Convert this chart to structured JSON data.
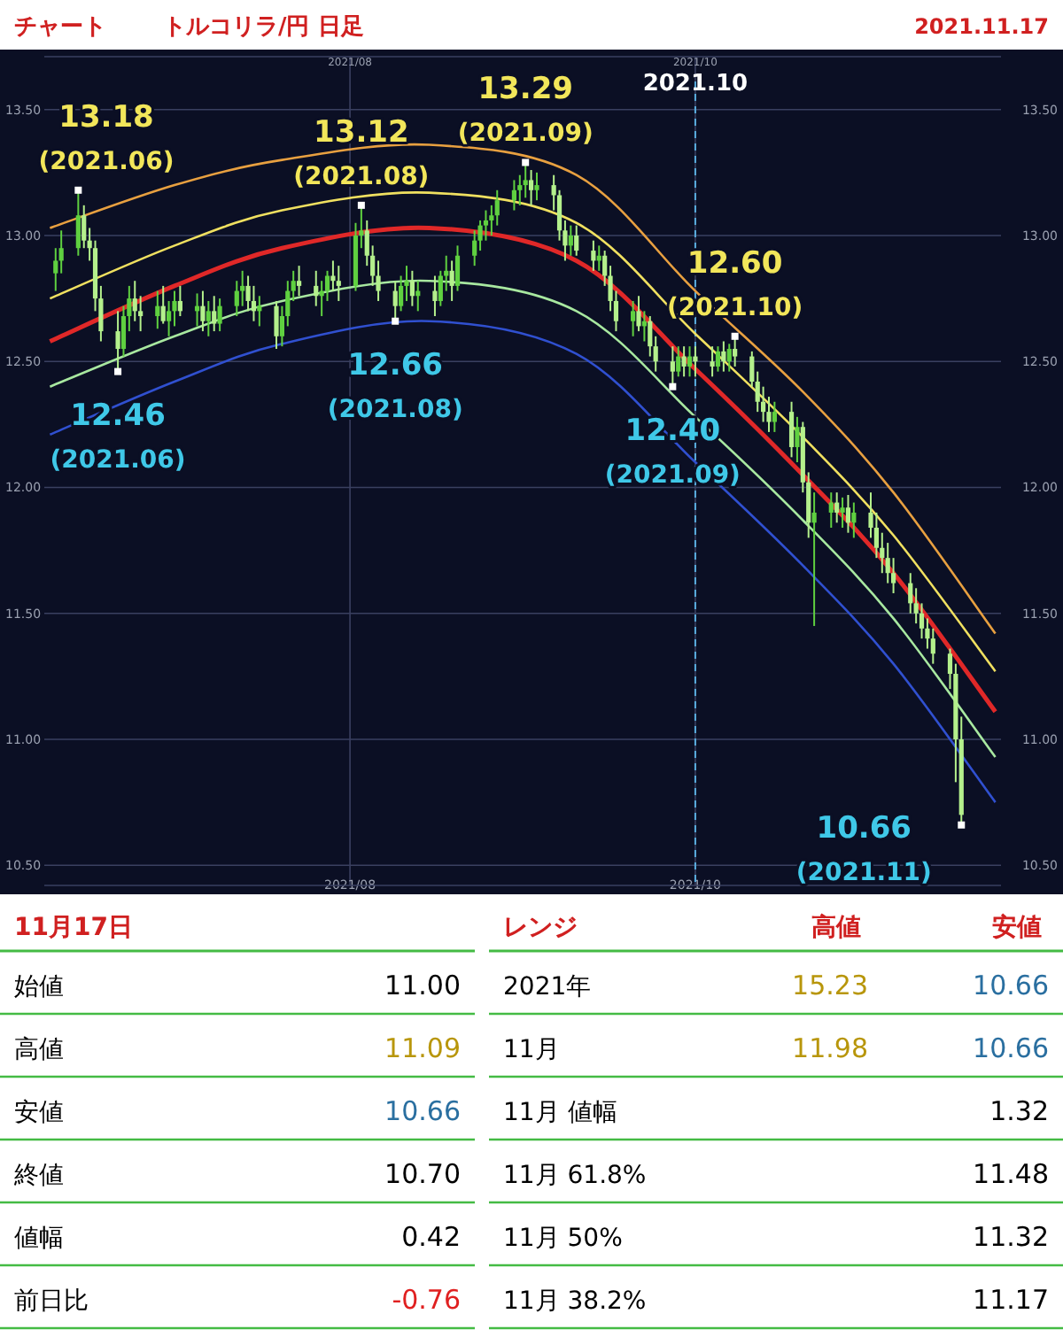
{
  "chart_data": [
    {
      "type": "candlestick",
      "title": "チャート",
      "subtitle": "トルコリラ/円 日足",
      "x": [
        "2021-06-10",
        "2021-06-11",
        "2021-06-14",
        "2021-06-15",
        "2021-06-16",
        "2021-06-17",
        "2021-06-18",
        "2021-06-21",
        "2021-06-22",
        "2021-06-23",
        "2021-06-24",
        "2021-06-25",
        "2021-06-28",
        "2021-06-29",
        "2021-06-30",
        "2021-07-01",
        "2021-07-02",
        "2021-07-05",
        "2021-07-06",
        "2021-07-07",
        "2021-07-08",
        "2021-07-09",
        "2021-07-12",
        "2021-07-13",
        "2021-07-14",
        "2021-07-15",
        "2021-07-16",
        "2021-07-19",
        "2021-07-20",
        "2021-07-21",
        "2021-07-22",
        "2021-07-23",
        "2021-07-26",
        "2021-07-27",
        "2021-07-28",
        "2021-07-29",
        "2021-07-30",
        "2021-08-02",
        "2021-08-03",
        "2021-08-04",
        "2021-08-05",
        "2021-08-06",
        "2021-08-09",
        "2021-08-10",
        "2021-08-11",
        "2021-08-12",
        "2021-08-13",
        "2021-08-16",
        "2021-08-17",
        "2021-08-18",
        "2021-08-19",
        "2021-08-20",
        "2021-08-23",
        "2021-08-24",
        "2021-08-25",
        "2021-08-26",
        "2021-08-27",
        "2021-08-30",
        "2021-08-31",
        "2021-09-01",
        "2021-09-02",
        "2021-09-03",
        "2021-09-06",
        "2021-09-07",
        "2021-09-08",
        "2021-09-09",
        "2021-09-10",
        "2021-09-13",
        "2021-09-14",
        "2021-09-15",
        "2021-09-16",
        "2021-09-17",
        "2021-09-20",
        "2021-09-21",
        "2021-09-22",
        "2021-09-23",
        "2021-09-24",
        "2021-09-27",
        "2021-09-28",
        "2021-09-29",
        "2021-09-30",
        "2021-10-01",
        "2021-10-04",
        "2021-10-05",
        "2021-10-06",
        "2021-10-07",
        "2021-10-08",
        "2021-10-11",
        "2021-10-12",
        "2021-10-13",
        "2021-10-14",
        "2021-10-15",
        "2021-10-18",
        "2021-10-19",
        "2021-10-20",
        "2021-10-21",
        "2021-10-22",
        "2021-10-25",
        "2021-10-26",
        "2021-10-27",
        "2021-10-28",
        "2021-10-29",
        "2021-11-01",
        "2021-11-02",
        "2021-11-03",
        "2021-11-04",
        "2021-11-05",
        "2021-11-08",
        "2021-11-09",
        "2021-11-10",
        "2021-11-11",
        "2021-11-12",
        "2021-11-15",
        "2021-11-16",
        "2021-11-17"
      ],
      "ohlc": [
        [
          12.85,
          12.95,
          12.78,
          12.9
        ],
        [
          12.9,
          13.02,
          12.85,
          12.95
        ],
        [
          12.95,
          13.18,
          12.92,
          13.08
        ],
        [
          13.08,
          13.12,
          12.95,
          12.98
        ],
        [
          12.98,
          13.03,
          12.9,
          12.95
        ],
        [
          12.95,
          12.98,
          12.7,
          12.75
        ],
        [
          12.75,
          12.8,
          12.58,
          12.62
        ],
        [
          12.62,
          12.7,
          12.46,
          12.55
        ],
        [
          12.55,
          12.72,
          12.52,
          12.68
        ],
        [
          12.68,
          12.8,
          12.62,
          12.75
        ],
        [
          12.75,
          12.82,
          12.66,
          12.7
        ],
        [
          12.7,
          12.76,
          12.62,
          12.68
        ],
        [
          12.68,
          12.78,
          12.63,
          12.72
        ],
        [
          12.72,
          12.8,
          12.65,
          12.66
        ],
        [
          12.66,
          12.74,
          12.6,
          12.7
        ],
        [
          12.7,
          12.78,
          12.64,
          12.74
        ],
        [
          12.74,
          12.8,
          12.68,
          12.7
        ],
        [
          12.7,
          12.77,
          12.64,
          12.72
        ],
        [
          12.72,
          12.78,
          12.62,
          12.66
        ],
        [
          12.66,
          12.74,
          12.6,
          12.7
        ],
        [
          12.7,
          12.76,
          12.62,
          12.65
        ],
        [
          12.65,
          12.75,
          12.62,
          12.72
        ],
        [
          12.72,
          12.82,
          12.68,
          12.78
        ],
        [
          12.78,
          12.86,
          12.72,
          12.8
        ],
        [
          12.8,
          12.84,
          12.7,
          12.74
        ],
        [
          12.74,
          12.8,
          12.66,
          12.7
        ],
        [
          12.7,
          12.76,
          12.64,
          12.72
        ],
        [
          12.72,
          12.74,
          12.55,
          12.6
        ],
        [
          12.6,
          12.72,
          12.56,
          12.68
        ],
        [
          12.68,
          12.82,
          12.64,
          12.78
        ],
        [
          12.78,
          12.86,
          12.74,
          12.82
        ],
        [
          12.82,
          12.88,
          12.76,
          12.8
        ],
        [
          12.8,
          12.86,
          12.72,
          12.76
        ],
        [
          12.76,
          12.82,
          12.68,
          12.78
        ],
        [
          12.78,
          12.86,
          12.74,
          12.84
        ],
        [
          12.84,
          12.9,
          12.78,
          12.82
        ],
        [
          12.82,
          12.88,
          12.74,
          12.8
        ],
        [
          12.8,
          13.05,
          12.78,
          13.0
        ],
        [
          13.0,
          13.12,
          12.95,
          13.02
        ],
        [
          13.02,
          13.06,
          12.88,
          12.92
        ],
        [
          12.92,
          12.96,
          12.8,
          12.84
        ],
        [
          12.84,
          12.9,
          12.74,
          12.78
        ],
        [
          12.78,
          12.82,
          12.66,
          12.72
        ],
        [
          12.72,
          12.84,
          12.7,
          12.8
        ],
        [
          12.8,
          12.88,
          12.74,
          12.82
        ],
        [
          12.82,
          12.86,
          12.72,
          12.76
        ],
        [
          12.76,
          12.82,
          12.7,
          12.78
        ],
        [
          12.78,
          12.84,
          12.68,
          12.74
        ],
        [
          12.74,
          12.86,
          12.72,
          12.84
        ],
        [
          12.84,
          12.92,
          12.78,
          12.86
        ],
        [
          12.86,
          12.9,
          12.74,
          12.8
        ],
        [
          12.8,
          12.96,
          12.78,
          12.92
        ],
        [
          12.92,
          13.02,
          12.88,
          12.98
        ],
        [
          12.98,
          13.06,
          12.94,
          13.04
        ],
        [
          13.04,
          13.1,
          12.98,
          13.06
        ],
        [
          13.06,
          13.12,
          13.0,
          13.08
        ],
        [
          13.08,
          13.18,
          13.04,
          13.14
        ],
        [
          13.14,
          13.22,
          13.1,
          13.18
        ],
        [
          13.18,
          13.24,
          13.12,
          13.2
        ],
        [
          13.2,
          13.29,
          13.15,
          13.22
        ],
        [
          13.22,
          13.26,
          13.12,
          13.18
        ],
        [
          13.18,
          13.25,
          13.14,
          13.2
        ],
        [
          13.2,
          13.24,
          13.1,
          13.16
        ],
        [
          13.16,
          13.18,
          12.98,
          13.02
        ],
        [
          13.02,
          13.06,
          12.9,
          12.96
        ],
        [
          12.96,
          13.04,
          12.92,
          13.0
        ],
        [
          13.0,
          13.04,
          12.92,
          12.94
        ],
        [
          12.94,
          12.98,
          12.86,
          12.9
        ],
        [
          12.9,
          12.96,
          12.86,
          12.92
        ],
        [
          12.92,
          12.94,
          12.8,
          12.84
        ],
        [
          12.84,
          12.88,
          12.7,
          12.74
        ],
        [
          12.74,
          12.78,
          12.62,
          12.66
        ],
        [
          12.66,
          12.74,
          12.6,
          12.7
        ],
        [
          12.7,
          12.76,
          12.62,
          12.64
        ],
        [
          12.64,
          12.7,
          12.58,
          12.66
        ],
        [
          12.66,
          12.68,
          12.52,
          12.56
        ],
        [
          12.56,
          12.6,
          12.46,
          12.5
        ],
        [
          12.5,
          12.56,
          12.4,
          12.46
        ],
        [
          12.46,
          12.56,
          12.44,
          12.52
        ],
        [
          12.52,
          12.56,
          12.44,
          12.48
        ],
        [
          12.48,
          12.56,
          12.44,
          12.52
        ],
        [
          12.52,
          12.56,
          12.44,
          12.5
        ],
        [
          12.5,
          12.56,
          12.44,
          12.48
        ],
        [
          12.48,
          12.56,
          12.46,
          12.54
        ],
        [
          12.54,
          12.58,
          12.46,
          12.5
        ],
        [
          12.5,
          12.57,
          12.46,
          12.55
        ],
        [
          12.55,
          12.6,
          12.48,
          12.52
        ],
        [
          12.52,
          12.54,
          12.4,
          12.42
        ],
        [
          12.42,
          12.46,
          12.3,
          12.34
        ],
        [
          12.34,
          12.4,
          12.26,
          12.3
        ],
        [
          12.3,
          12.36,
          12.22,
          12.26
        ],
        [
          12.26,
          12.34,
          12.22,
          12.3
        ],
        [
          12.3,
          12.34,
          12.12,
          12.16
        ],
        [
          12.16,
          12.28,
          12.1,
          12.24
        ],
        [
          12.24,
          12.26,
          11.98,
          12.02
        ],
        [
          12.02,
          12.06,
          11.8,
          11.86
        ],
        [
          11.86,
          11.98,
          11.45,
          11.9
        ],
        [
          11.9,
          11.98,
          11.84,
          11.94
        ],
        [
          11.94,
          11.98,
          11.86,
          11.9
        ],
        [
          11.9,
          11.96,
          11.84,
          11.92
        ],
        [
          11.92,
          11.97,
          11.82,
          11.86
        ],
        [
          11.86,
          11.94,
          11.8,
          11.9
        ],
        [
          11.9,
          11.98,
          11.8,
          11.84
        ],
        [
          11.84,
          11.9,
          11.72,
          11.76
        ],
        [
          11.76,
          11.82,
          11.66,
          11.72
        ],
        [
          11.72,
          11.78,
          11.62,
          11.66
        ],
        [
          11.66,
          11.72,
          11.58,
          11.62
        ],
        [
          11.62,
          11.66,
          11.5,
          11.54
        ],
        [
          11.54,
          11.6,
          11.46,
          11.5
        ],
        [
          11.5,
          11.54,
          11.4,
          11.44
        ],
        [
          11.44,
          11.48,
          11.36,
          11.4
        ],
        [
          11.4,
          11.44,
          11.3,
          11.34
        ],
        [
          11.34,
          11.36,
          11.2,
          11.26
        ],
        [
          11.26,
          11.3,
          10.83,
          11.0
        ],
        [
          11.0,
          11.09,
          10.66,
          10.7
        ]
      ],
      "series": [
        {
          "type": "line",
          "color": "#e8a040",
          "x": [
            "2021-06-09",
            "2021-07-01",
            "2021-07-20",
            "2021-08-15",
            "2021-09-10",
            "2021-10-01",
            "2021-10-20",
            "2021-11-05",
            "2021-11-23"
          ],
          "values": [
            13.03,
            13.2,
            13.3,
            13.36,
            13.24,
            12.78,
            12.38,
            11.98,
            11.42
          ]
        },
        {
          "type": "line",
          "color": "#f0e060",
          "x": [
            "2021-06-09",
            "2021-07-01",
            "2021-07-20",
            "2021-08-15",
            "2021-09-10",
            "2021-10-01",
            "2021-10-20",
            "2021-11-05",
            "2021-11-23"
          ],
          "values": [
            12.75,
            12.96,
            13.1,
            13.17,
            13.05,
            12.61,
            12.2,
            11.81,
            11.27
          ]
        },
        {
          "type": "line",
          "color": "#e02828",
          "x": [
            "2021-06-09",
            "2021-07-01",
            "2021-07-20",
            "2021-08-15",
            "2021-09-10",
            "2021-10-01",
            "2021-10-20",
            "2021-11-05",
            "2021-11-23"
          ],
          "values": [
            12.58,
            12.8,
            12.95,
            13.03,
            12.9,
            12.47,
            12.05,
            11.66,
            11.11
          ]
        },
        {
          "type": "line",
          "color": "#a8e8a0",
          "x": [
            "2021-06-09",
            "2021-07-01",
            "2021-07-20",
            "2021-08-15",
            "2021-09-10",
            "2021-10-01",
            "2021-10-20",
            "2021-11-05",
            "2021-11-23"
          ],
          "values": [
            12.4,
            12.6,
            12.74,
            12.82,
            12.7,
            12.28,
            11.87,
            11.48,
            10.93
          ]
        },
        {
          "type": "line",
          "color": "#3050d0",
          "x": [
            "2021-06-09",
            "2021-07-01",
            "2021-07-20",
            "2021-08-15",
            "2021-09-10",
            "2021-10-01",
            "2021-10-20",
            "2021-11-05",
            "2021-11-23"
          ],
          "values": [
            12.21,
            12.42,
            12.57,
            12.66,
            12.53,
            12.1,
            11.69,
            11.3,
            10.75
          ]
        }
      ],
      "xlim": [
        "2021-06-08",
        "2021-11-24"
      ],
      "xticks": [
        {
          "value": "2021-08-01",
          "label": "2021/08"
        },
        {
          "value": "2021-10-01",
          "label": "2021/10"
        }
      ],
      "x2lim": [
        "2021-06-08",
        "2021-11-24"
      ],
      "x2ticks": [
        {
          "value": "2021-08-01",
          "label": "2021/08"
        },
        {
          "value": "2021-10-01",
          "label": "2021/10"
        }
      ],
      "ylim": [
        10.42,
        13.71
      ],
      "yticks": [
        {
          "value": 10.5,
          "label": "10.50"
        },
        {
          "value": 11,
          "label": "11.00"
        },
        {
          "value": 11.5,
          "label": "11.50"
        },
        {
          "value": 12,
          "label": "12.00"
        },
        {
          "value": 12.5,
          "label": "12.50"
        },
        {
          "value": 13,
          "label": "13.00"
        },
        {
          "value": 13.5,
          "label": "13.50"
        }
      ],
      "y2lim": [
        10.42,
        13.71
      ],
      "y2ticks": [
        {
          "value": 10.5,
          "label": "10.50"
        },
        {
          "value": 11,
          "label": "11.00"
        },
        {
          "value": 11.5,
          "label": "11.50"
        },
        {
          "value": 12,
          "label": "12.00"
        },
        {
          "value": 12.5,
          "label": "12.50"
        },
        {
          "value": 13,
          "label": "13.00"
        },
        {
          "value": 13.5,
          "label": "13.50"
        }
      ],
      "grid": true,
      "ref_lines": [
        {
          "axis": "x",
          "value": "2021-10-01",
          "label": "2021.10",
          "color": "#5aaee0",
          "line_style": "dashed"
        }
      ],
      "annotations": [
        "2021.11.17",
        {
          "text": "13.18\n(2021.06)",
          "x": "2021-06-14",
          "y": 13.18
        },
        {
          "text": "12.46\n(2021.06)",
          "x": "2021-06-21",
          "y": 12.46
        },
        {
          "text": "13.12\n(2021.08)",
          "x": "2021-08-03",
          "y": 13.12
        },
        {
          "text": "12.66\n(2021.08)",
          "x": "2021-08-09",
          "y": 12.66
        },
        {
          "text": "13.29\n(2021.09)",
          "x": "2021-09-01",
          "y": 13.29
        },
        {
          "text": "12.40\n(2021.09)",
          "x": "2021-09-27",
          "y": 12.4
        },
        {
          "text": "12.60\n(2021.10)",
          "x": "2021-10-08",
          "y": 12.6
        },
        {
          "text": "10.66\n(2021.11)",
          "x": "2021-11-17",
          "y": 10.66
        }
      ]
    },
    {
      "type": "other",
      "title": "11月17日",
      "categories": [
        "始値",
        "高値",
        "安値",
        "終値",
        "値幅",
        "前日比"
      ],
      "value_labels": [
        "11.00",
        "11.09",
        "10.66",
        "10.70",
        "0.42",
        "-0.76"
      ],
      "colors": [
        "#000000",
        "#b8960b",
        "#2a6fa0",
        "#000000",
        "#000000",
        "#e02020"
      ],
      "data_labels": true
    },
    {
      "type": "other",
      "title": "レンジ",
      "categories": [
        "2021年",
        "11月",
        "11月 値幅",
        "11月 61.8%",
        "11月 50%",
        "11月 38.2%"
      ],
      "series": [
        {
          "name": "高値",
          "colors": [
            "#b8960b",
            "#b8960b",
            null,
            null,
            null,
            null
          ],
          "values": [
            15.23,
            11.98,
            null,
            null,
            null,
            null
          ]
        },
        {
          "name": "安値",
          "colors": [
            "#2a6fa0",
            "#2a6fa0",
            "#000000",
            "#000000",
            "#000000",
            "#000000"
          ],
          "values": [
            10.66,
            10.66,
            1.32,
            11.48,
            11.32,
            11.17
          ]
        }
      ],
      "data_labels": true
    }
  ]
}
